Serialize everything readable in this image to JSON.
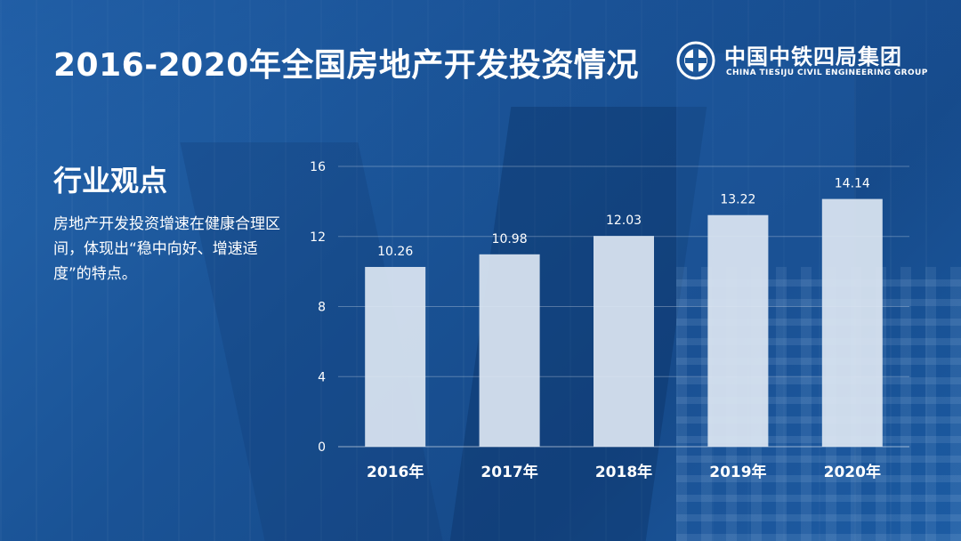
{
  "page": {
    "title": "2016-2020年全国房地产开发投资情况",
    "logo": {
      "name_cn": "中国中铁四局集团",
      "name_en": "CHINA TIESIJU CIVIL ENGINEERING GROUP"
    },
    "sidebar": {
      "heading": "行业观点",
      "text": "房地产开发投资增速在健康合理区间，体现出“稳中向好、增速适度”的特点。"
    }
  },
  "colors": {
    "bar": "#dce6f2",
    "grid": "#ffffff",
    "text": "#ffffff"
  },
  "chart_data": {
    "type": "bar",
    "title": "2016-2020年全国房地产开发投资情况",
    "categories": [
      "2016年",
      "2017年",
      "2018年",
      "2019年",
      "2020年"
    ],
    "values": [
      10.26,
      10.98,
      12.03,
      13.22,
      14.14
    ],
    "value_labels": [
      "10.26",
      "10.98",
      "12.03",
      "13.22",
      "14.14"
    ],
    "yticks": [
      0,
      4,
      8,
      12,
      16
    ],
    "ylim": [
      0,
      16
    ],
    "xlabel": "",
    "ylabel": "",
    "grid": true
  }
}
